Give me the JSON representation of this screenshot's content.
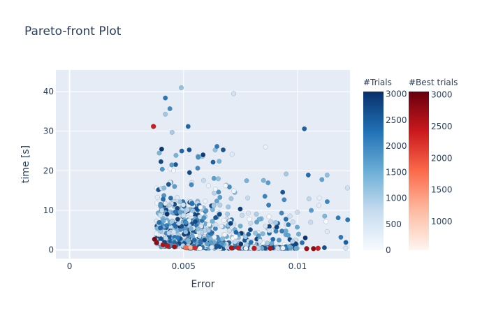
{
  "chart_data": {
    "type": "scatter",
    "title": "Pareto-front Plot",
    "xlabel": "Error",
    "ylabel": "time [s]",
    "xlim": [
      -0.0006,
      0.0123
    ],
    "ylim": [
      -2.2,
      45.5
    ],
    "x_ticks": [
      0,
      0.005,
      0.01
    ],
    "x_tick_labels": [
      "0",
      "0.005",
      "0.01"
    ],
    "y_ticks": [
      0,
      10,
      20,
      30,
      40
    ],
    "y_tick_labels": [
      "0",
      "10",
      "20",
      "30",
      "40"
    ],
    "grid": true,
    "plot_background": "#e5ecf6",
    "colorbars": [
      {
        "title": "#Trials",
        "range": [
          0,
          3050
        ],
        "ticks": [
          0,
          500,
          1000,
          1500,
          2000,
          2500,
          3000
        ],
        "tick_labels": [
          "0",
          "500",
          "1000",
          "1500",
          "2000",
          "2500",
          "3000"
        ],
        "colorscale": [
          "#f7fbff",
          "#c6dbef",
          "#6baed6",
          "#2171b5",
          "#08306b"
        ]
      },
      {
        "title": "#Best trials",
        "range": [
          550,
          3050
        ],
        "ticks": [
          1000,
          1500,
          2000,
          2500,
          3000
        ],
        "tick_labels": [
          "1000",
          "1500",
          "2000",
          "2500",
          "3000"
        ],
        "colorscale": [
          "#fff5f0",
          "#fcbba1",
          "#fb6a4a",
          "#cb181d",
          "#67000d"
        ]
      }
    ],
    "best_trials": [
      {
        "x": 0.00368,
        "y": 31.2,
        "trial": 2400
      },
      {
        "x": 0.00373,
        "y": 2.7,
        "trial": 2900
      },
      {
        "x": 0.00382,
        "y": 1.8,
        "trial": 2800
      },
      {
        "x": 0.0041,
        "y": 1.3,
        "trial": 2600
      },
      {
        "x": 0.0043,
        "y": 1.0,
        "trial": 2500
      },
      {
        "x": 0.0046,
        "y": 0.8,
        "trial": 2700
      },
      {
        "x": 0.0051,
        "y": 0.6,
        "trial": 1800
      },
      {
        "x": 0.0053,
        "y": 0.6,
        "trial": 1200
      },
      {
        "x": 0.0055,
        "y": 0.5,
        "trial": 2300
      },
      {
        "x": 0.0071,
        "y": 0.5,
        "trial": 2600
      },
      {
        "x": 0.0074,
        "y": 0.5,
        "trial": 2400
      },
      {
        "x": 0.0081,
        "y": 0.4,
        "trial": 2500
      },
      {
        "x": 0.0088,
        "y": 0.4,
        "trial": 2600
      },
      {
        "x": 0.0104,
        "y": 0.3,
        "trial": 2700
      },
      {
        "x": 0.0107,
        "y": 0.3,
        "trial": 2800
      },
      {
        "x": 0.0109,
        "y": 0.4,
        "trial": 2400
      }
    ],
    "trials_approx_count": 900
  }
}
